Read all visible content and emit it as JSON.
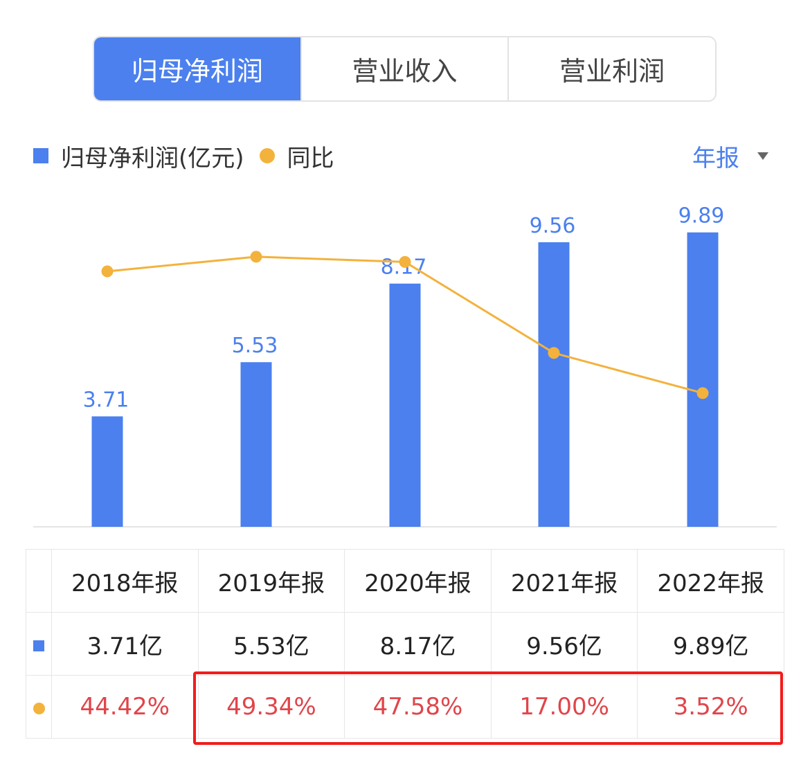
{
  "tabs": [
    {
      "label": "归母净利润",
      "active": true
    },
    {
      "label": "营业收入",
      "active": false
    },
    {
      "label": "营业利润",
      "active": false
    }
  ],
  "legend": {
    "bar_label": "归母净利润(亿元)",
    "line_label": "同比"
  },
  "period": {
    "label": "年报",
    "icon": "caret-down-icon"
  },
  "colors": {
    "bar": "#4b80ee",
    "line": "#f3b23c",
    "pct_text": "#e0454a",
    "highlight": "#f21b1b"
  },
  "chart_data": {
    "type": "bar",
    "categories": [
      "2018年报",
      "2019年报",
      "2020年报",
      "2021年报",
      "2022年报"
    ],
    "series": [
      {
        "name": "归母净利润(亿元)",
        "type": "bar",
        "values": [
          3.71,
          5.53,
          8.17,
          9.56,
          9.89
        ],
        "labels": [
          "3.71",
          "5.53",
          "8.17",
          "9.56",
          "9.89"
        ]
      },
      {
        "name": "同比",
        "type": "line",
        "values": [
          44.42,
          49.34,
          47.58,
          17.0,
          3.52
        ]
      }
    ]
  },
  "table": {
    "headers": [
      "2018年报",
      "2019年报",
      "2020年报",
      "2021年报",
      "2022年报"
    ],
    "profit_row": [
      "3.71亿",
      "5.53亿",
      "8.17亿",
      "9.56亿",
      "9.89亿"
    ],
    "yoy_row": [
      "44.42%",
      "49.34%",
      "47.58%",
      "17.00%",
      "3.52%"
    ]
  }
}
